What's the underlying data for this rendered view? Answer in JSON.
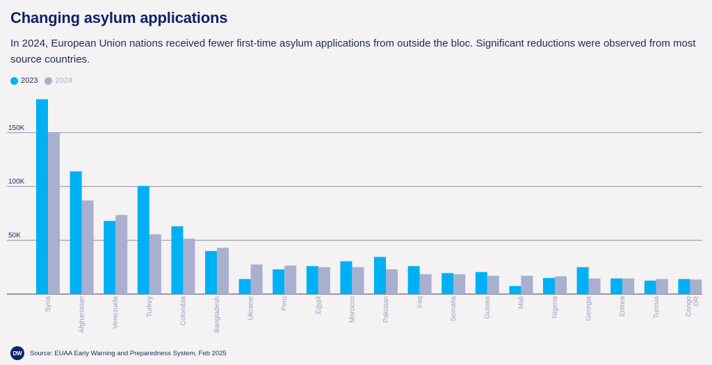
{
  "title": "Changing asylum applications",
  "subtitle": "In 2024, European Union nations received fewer first-time asylum applications from outside the bloc. Significant reductions were observed from most source countries.",
  "footer": {
    "logo_text": "DW",
    "source": "Source: EUAA Early Warning and Preparedness System, Feb 2025"
  },
  "colors": {
    "series_2023": "#00b0f5",
    "series_2024": "#a9afcf",
    "grid": "#8a8fa8",
    "tick_label": "#1c2a5c",
    "category_label": "#9aa0c2"
  },
  "chart_data": {
    "type": "bar",
    "title": "Changing asylum applications",
    "xlabel": "",
    "ylabel": "",
    "ylim": [
      0,
      180000
    ],
    "yticks": [
      {
        "value": 50000,
        "label": "50K"
      },
      {
        "value": 100000,
        "label": "100K"
      },
      {
        "value": 150000,
        "label": "150K"
      }
    ],
    "grid": true,
    "legend_position": "top-left",
    "categories": [
      "Syria",
      "Afghanistan",
      "Venezuela",
      "Turkey",
      "Colombia",
      "Bangladesh",
      "Ukraine",
      "Peru",
      "Egypt",
      "Morocco",
      "Pakistan",
      "Iraq",
      "Somalia",
      "Guinea",
      "Mali",
      "Nigeria",
      "Georgia",
      "Eritrea",
      "Tunisia",
      "Congo DR"
    ],
    "series": [
      {
        "name": "2023",
        "values": [
          181000,
          114000,
          68000,
          100500,
          63000,
          40000,
          14000,
          23000,
          26000,
          30500,
          34500,
          26000,
          19500,
          20500,
          7500,
          15000,
          25000,
          14500,
          12500,
          14000
        ]
      },
      {
        "name": "2024",
        "values": [
          150500,
          87000,
          73500,
          55500,
          51500,
          43000,
          27500,
          26500,
          25000,
          25000,
          23000,
          18500,
          18500,
          17000,
          17000,
          16500,
          14500,
          14500,
          14000,
          13500
        ]
      }
    ]
  }
}
